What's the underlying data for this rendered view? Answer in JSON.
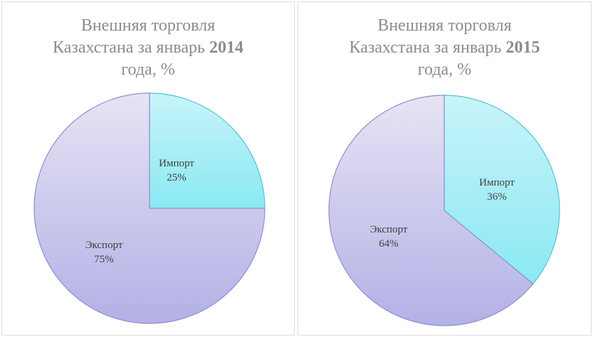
{
  "chart_data": [
    {
      "type": "pie",
      "title_lines": [
        "Внешняя торговля",
        "Казахстана за январь",
        "2014",
        "года, %"
      ],
      "slices": [
        {
          "name": "Импорт",
          "value": 25,
          "label": "25%"
        },
        {
          "name": "Экспорт",
          "value": 75,
          "label": "75%"
        }
      ]
    },
    {
      "type": "pie",
      "title_lines": [
        "Внешняя торговля",
        "Казахстана за январь",
        "2015",
        "года, %"
      ],
      "slices": [
        {
          "name": "Импорт",
          "value": 36,
          "label": "36%"
        },
        {
          "name": "Экспорт",
          "value": 64,
          "label": "64%"
        }
      ]
    }
  ],
  "colors": {
    "import_fill_top": "#c8f4f8",
    "import_fill_bottom": "#8ae9f3",
    "import_stroke": "#4fc3d9",
    "export_fill_top": "#e6e4f3",
    "export_fill_bottom": "#b3b1e6",
    "export_stroke": "#8f8ed0"
  }
}
